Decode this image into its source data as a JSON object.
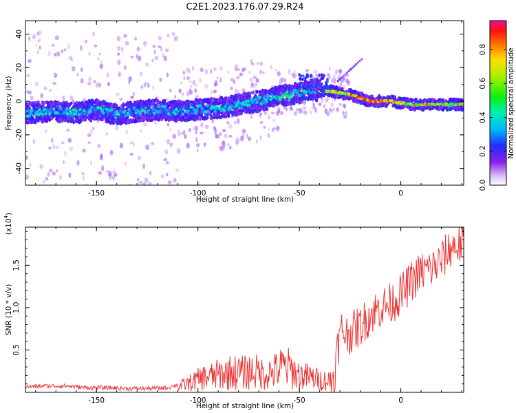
{
  "chart_data": [
    {
      "type": "heatmap",
      "title": "C2E1.2023.176.07.29.R24",
      "xlabel": "Height of straight line (km)",
      "ylabel": "Frequency (Hz)",
      "xlim": [
        -185,
        31
      ],
      "ylim": [
        -50,
        48
      ],
      "xticks": [
        -150,
        -100,
        -50,
        0
      ],
      "yticks": [
        -40,
        -20,
        0,
        20,
        40
      ],
      "colorbar": {
        "label": "Normalized spectral amplitude",
        "range": [
          0,
          1
        ],
        "ticks": [
          "0.0",
          "0.2",
          "0.4",
          "0.6",
          "0.8"
        ]
      },
      "ridge": {
        "description": "frequency of main spectral ridge vs height",
        "x": [
          -185,
          -170,
          -160,
          -150,
          -140,
          -130,
          -120,
          -110,
          -100,
          -90,
          -80,
          -70,
          -60,
          -50,
          -45,
          -40,
          -35,
          -30,
          -25,
          -20,
          -15,
          -10,
          -5,
          0,
          5,
          10,
          20,
          31
        ],
        "y": [
          -7,
          -6,
          -7,
          -5,
          -8,
          -6,
          -5,
          -6,
          -5,
          -4,
          -2,
          0,
          3,
          5,
          7,
          6,
          6,
          5,
          4,
          2,
          0,
          0,
          0,
          -1,
          -2,
          -2,
          -2,
          -2
        ]
      }
    },
    {
      "type": "line",
      "title": "",
      "xlabel": "Height of straight line (km)",
      "ylabel": "SNR (10 * v/v)",
      "y_multiplier_label": "(x10",
      "y_multiplier_exp": "4",
      "y_multiplier_close": ")",
      "xlim": [
        -185,
        31
      ],
      "ylim": [
        0,
        1.95
      ],
      "xticks": [
        -150,
        -100,
        -50,
        0
      ],
      "yticks": [
        "0.5",
        "1.0",
        "1.5"
      ],
      "color": "#ee3333",
      "series": [
        {
          "name": "SNR",
          "x": [
            -185,
            -175,
            -165,
            -155,
            -145,
            -135,
            -125,
            -115,
            -108,
            -103,
            -98,
            -93,
            -88,
            -83,
            -78,
            -73,
            -68,
            -63,
            -58,
            -55,
            -50,
            -45,
            -40,
            -35,
            -33,
            -31,
            -29,
            -27,
            -25,
            -20,
            -15,
            -10,
            -5,
            0,
            5,
            10,
            15,
            20,
            25,
            31
          ],
          "y": [
            0.04,
            0.05,
            0.05,
            0.03,
            0.03,
            0.02,
            0.02,
            0.03,
            0.08,
            0.12,
            0.17,
            0.19,
            0.22,
            0.24,
            0.23,
            0.25,
            0.22,
            0.24,
            0.3,
            0.28,
            0.2,
            0.18,
            0.15,
            0.14,
            0.17,
            0.55,
            0.75,
            0.68,
            0.7,
            0.78,
            0.92,
            1.0,
            1.05,
            1.15,
            1.3,
            1.42,
            1.46,
            1.55,
            1.72,
            1.75
          ]
        }
      ]
    }
  ]
}
